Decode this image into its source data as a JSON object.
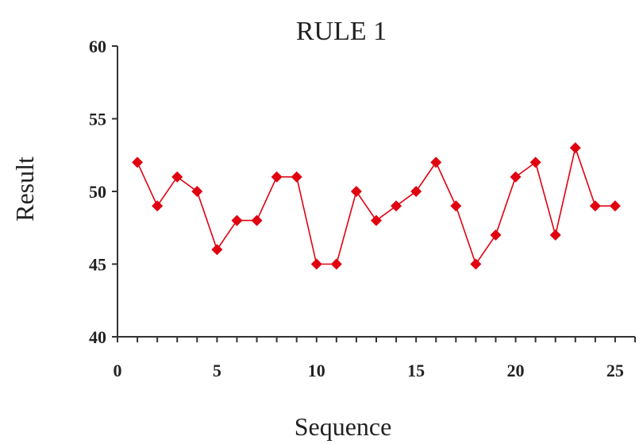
{
  "chart_data": {
    "type": "line",
    "title": "RULE 1",
    "xlabel": "Sequence",
    "ylabel": "Result",
    "xlim": [
      0,
      26
    ],
    "ylim": [
      40,
      60
    ],
    "x_ticks": [
      0,
      5,
      10,
      15,
      20,
      25
    ],
    "y_ticks": [
      40,
      45,
      50,
      55,
      60
    ],
    "grid": false,
    "series": [
      {
        "color": "#e0000f",
        "marker": "diamond",
        "x": [
          1,
          2,
          3,
          4,
          5,
          6,
          7,
          8,
          9,
          10,
          11,
          12,
          13,
          14,
          15,
          16,
          17,
          18,
          19,
          20,
          21,
          22,
          23,
          24,
          25
        ],
        "values": [
          52,
          49,
          51,
          50,
          46,
          48,
          48,
          51,
          51,
          45,
          45,
          50,
          48,
          49,
          50,
          52,
          49,
          45,
          47,
          51,
          52,
          47,
          53,
          49,
          49
        ]
      }
    ]
  }
}
